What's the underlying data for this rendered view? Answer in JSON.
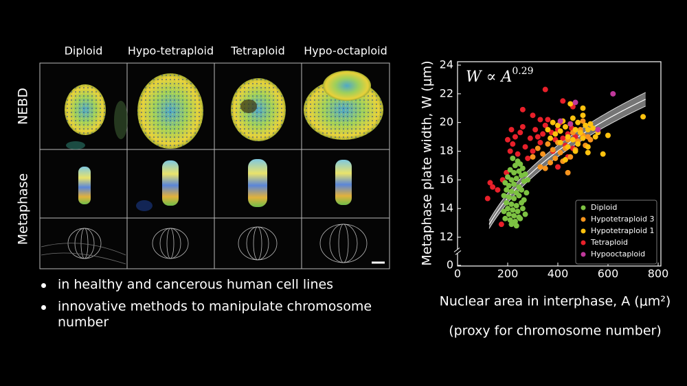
{
  "panel": {
    "columns": [
      "Diploid",
      "Hypo-tetraploid",
      "Tetraploid",
      "Hypo-octaploid"
    ],
    "rows": [
      "NEBD",
      "Metaphase"
    ]
  },
  "bullets": [
    "in healthy and cancerous human cell lines",
    "innovative methods to manipulate chromosome number"
  ],
  "chart_data": {
    "type": "scatter",
    "annotation": "W ∝ A",
    "ylabel": "Metaphase plate width, W (μm)",
    "xlabel": "Nuclear area in interphase, A (μm²)",
    "xlabel_note": "(proxy for chromosome number)",
    "xlim": [
      0,
      800
    ],
    "xticks": [
      0,
      200,
      400,
      600,
      800
    ],
    "ylim": [
      0,
      24
    ],
    "yticks": [
      0,
      12,
      14,
      16,
      18,
      20,
      22,
      24
    ],
    "y_break": true,
    "legend": "lower right",
    "fit": {
      "exponent": 0.29,
      "coefficient": 3.17,
      "coefficient_band": [
        3.1,
        3.24
      ],
      "x": [
        126,
        750
      ]
    },
    "series": [
      {
        "name": "Diploid",
        "color": "#7dc242",
        "x": [
          220,
          240,
          230,
          250,
          210,
          225,
          245,
          260,
          200,
          215,
          235,
          255,
          270,
          190,
          205,
          225,
          245,
          265,
          280,
          195,
          215,
          235,
          255,
          185,
          205,
          225,
          245,
          265,
          195,
          215,
          235,
          255,
          200,
          220,
          240,
          260,
          185,
          205,
          225,
          245,
          210,
          230,
          250,
          215,
          235,
          270,
          190,
          275
        ],
        "values": [
          17.5,
          17.3,
          17.0,
          17.1,
          16.7,
          16.5,
          16.6,
          16.8,
          16.2,
          16.0,
          16.1,
          16.3,
          16.4,
          15.8,
          15.6,
          15.7,
          15.5,
          15.9,
          16.0,
          15.3,
          15.2,
          15.1,
          15.3,
          14.9,
          14.8,
          14.7,
          14.9,
          14.6,
          14.4,
          14.3,
          14.2,
          14.4,
          14.0,
          13.9,
          13.8,
          14.0,
          13.8,
          13.6,
          13.5,
          13.4,
          13.2,
          13.1,
          13.3,
          12.9,
          12.8,
          13.6,
          13.3,
          15.1
        ]
      },
      {
        "name": "Hypotetraploid 3",
        "color": "#f7941d",
        "x": [
          300,
          320,
          340,
          360,
          370,
          380,
          390,
          400,
          410,
          420,
          430,
          440,
          450,
          460,
          470,
          480,
          490,
          500,
          510,
          520,
          350,
          330,
          440,
          500,
          530
        ],
        "values": [
          17.6,
          18.2,
          17.8,
          18.5,
          17.2,
          18.1,
          17.5,
          18.6,
          17.9,
          17.3,
          18.2,
          18.8,
          17.6,
          19.3,
          18.1,
          18.7,
          19.5,
          19.1,
          18.4,
          19.0,
          16.8,
          16.9,
          16.5,
          20.1,
          18.8
        ]
      },
      {
        "name": "Hypotetraploid 1",
        "color": "#ffc20e",
        "x": [
          360,
          380,
          390,
          400,
          410,
          420,
          430,
          440,
          450,
          460,
          470,
          480,
          490,
          500,
          510,
          520,
          530,
          540,
          550,
          560,
          520,
          580,
          600,
          740,
          500,
          440,
          470,
          410,
          430,
          450,
          370,
          480,
          500,
          460,
          520
        ],
        "values": [
          19.5,
          20.0,
          19.2,
          19.8,
          19.4,
          20.1,
          19.7,
          19.0,
          19.9,
          20.3,
          19.5,
          20.0,
          19.3,
          20.5,
          19.8,
          19.5,
          19.9,
          19.6,
          19.0,
          19.3,
          17.9,
          17.8,
          19.1,
          20.4,
          21.0,
          18.3,
          18.0,
          18.6,
          17.4,
          21.3,
          18.9,
          18.5,
          18.9,
          18.8,
          18.3
        ]
      },
      {
        "name": "Tetraploid",
        "color": "#e8202a",
        "x": [
          120,
          140,
          160,
          130,
          180,
          195,
          175,
          210,
          200,
          230,
          215,
          260,
          250,
          220,
          270,
          290,
          310,
          320,
          300,
          330,
          340,
          350,
          360,
          375,
          390,
          400,
          410,
          420,
          430,
          440,
          455,
          470,
          480,
          440,
          350,
          420,
          460,
          260,
          300,
          330,
          280,
          240,
          380,
          460,
          400
        ],
        "values": [
          14.7,
          15.5,
          15.3,
          15.8,
          16.0,
          16.5,
          12.9,
          18.0,
          18.8,
          19.0,
          19.5,
          19.7,
          19.3,
          18.5,
          18.3,
          18.9,
          19.5,
          19.0,
          18.0,
          18.6,
          19.2,
          19.8,
          20.2,
          19.3,
          18.8,
          19.5,
          20.0,
          18.9,
          18.4,
          19.2,
          19.6,
          19.0,
          18.6,
          17.6,
          22.3,
          21.5,
          21.1,
          20.9,
          20.5,
          20.2,
          17.5,
          17.8,
          18.0,
          18.2,
          16.9
        ]
      },
      {
        "name": "Hypooctaploid",
        "color": "#c0389b",
        "x": [
          620,
          470,
          450,
          560,
          410
        ],
        "values": [
          22.0,
          21.4,
          19.9,
          19.5,
          20.1
        ]
      }
    ]
  }
}
